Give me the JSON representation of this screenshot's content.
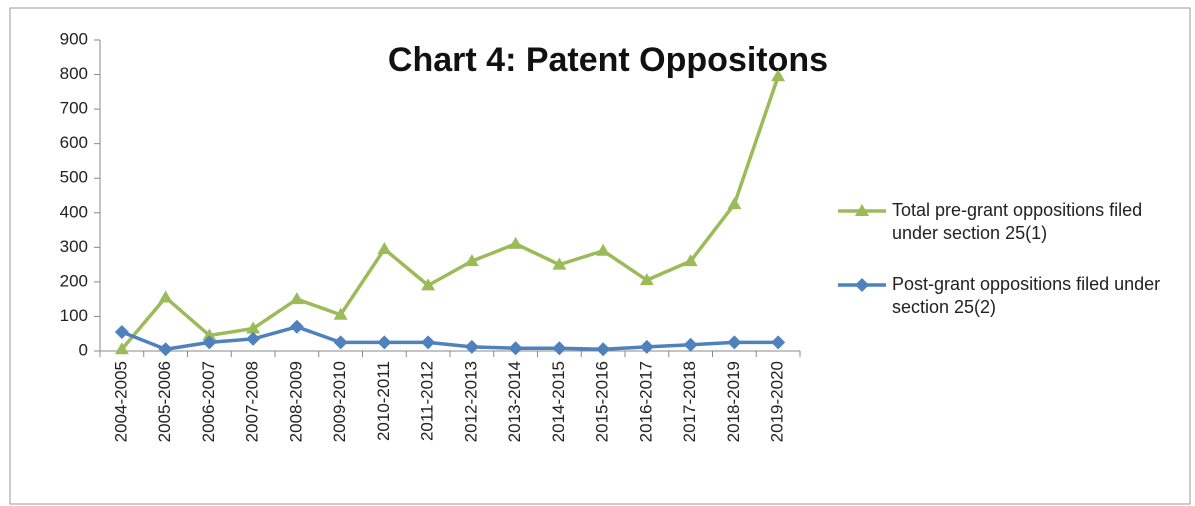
{
  "chart_data": {
    "type": "line",
    "title": "Chart 4: Patent Oppositons",
    "categories": [
      "2004-2005",
      "2005-2006",
      "2006-2007",
      "2007-2008",
      "2008-2009",
      "2009-2010",
      "2010-2011",
      "2011-2012",
      "2012-2013",
      "2013-2014",
      "2014-2015",
      "2015-2016",
      "2016-2017",
      "2017-2018",
      "2018-2019",
      "2019-2020"
    ],
    "series": [
      {
        "name": "Total pre-grant oppositions filed under section 25(1)",
        "color": "#9bbb59",
        "marker": "triangle",
        "values": [
          5,
          155,
          45,
          65,
          150,
          105,
          295,
          190,
          260,
          310,
          250,
          290,
          205,
          260,
          425,
          795
        ]
      },
      {
        "name": "Post-grant oppositions filed under section 25(2)",
        "color": "#4f81bd",
        "marker": "diamond",
        "values": [
          55,
          5,
          25,
          35,
          70,
          25,
          25,
          25,
          12,
          8,
          8,
          5,
          12,
          18,
          25,
          25
        ]
      }
    ],
    "ylim": [
      0,
      900
    ],
    "yticks": [
      0,
      100,
      200,
      300,
      400,
      500,
      600,
      700,
      800,
      900
    ],
    "grid": false,
    "legend": "right"
  }
}
